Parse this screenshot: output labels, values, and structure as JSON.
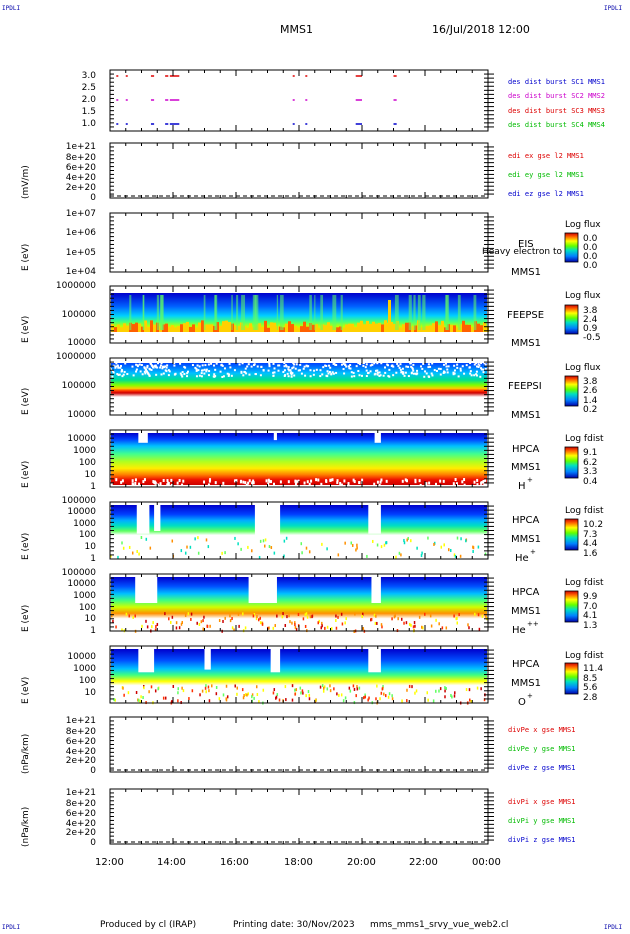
{
  "header": {
    "corner_label": "IPDLI",
    "title": "MMS1",
    "datetime": "16/Jul/2018 12:00"
  },
  "footer": {
    "produced": "Produced by cl (IRAP)",
    "printing": "Printing date: 30/Nov/2023",
    "filename": "mms_mms1_srvy_vue_web2.cl"
  },
  "colors": {
    "mms1": "#0000cc",
    "mms2": "#cc00cc",
    "mms3": "#dd0000",
    "mms4": "#00bb00",
    "x": "#dd0000",
    "y": "#00bb00",
    "z": "#0000cc"
  },
  "x_axis": {
    "ticks": [
      "12:00",
      "14:00",
      "16:00",
      "18:00",
      "20:00",
      "22:00",
      "00:00"
    ]
  },
  "panels": {
    "p1": {
      "ticks": [
        "3.0",
        "2.5",
        "2.0",
        "1.5",
        "1.0"
      ],
      "legend": [
        "des dist burst SC1 MMS1",
        "des dist burst SC2 MMS2",
        "des dist burst SC3 MMS3",
        "des dist burst SC4 MMS4"
      ]
    },
    "p2": {
      "ylabel": "(mV/m)",
      "ticks": [
        "1e+21",
        "8e+20",
        "6e+20",
        "4e+20",
        "2e+20",
        "0"
      ],
      "legend": [
        "edi ex gse l2 MMS1",
        "edi ey gse l2 MMS1",
        "edi ez gse l2 MMS1"
      ]
    },
    "p3": {
      "ylabel": "E (eV)",
      "ticks": [
        "1e+07",
        "1e+06",
        "1e+05",
        "1e+04"
      ],
      "inst": [
        "EIS",
        "MMS1"
      ],
      "overlay": "Heavy electron to",
      "cb_title": "Log flux",
      "cb_vals": [
        "0.0",
        "0.0",
        "0.0",
        "0.0"
      ]
    },
    "p4": {
      "ylabel": "E (eV)",
      "ticks": [
        "1000000",
        "100000",
        "10000"
      ],
      "inst": [
        "FEEPSE",
        "MMS1"
      ],
      "cb_title": "Log flux",
      "cb_vals": [
        "3.8",
        "2.4",
        "0.9",
        "-0.5"
      ]
    },
    "p5": {
      "ylabel": "E (eV)",
      "ticks": [
        "1000000",
        "100000",
        "10000"
      ],
      "inst": [
        "FEEPSI",
        "MMS1"
      ],
      "cb_title": "Log flux",
      "cb_vals": [
        "3.8",
        "2.6",
        "1.4",
        "0.2"
      ]
    },
    "p6": {
      "ylabel": "E (eV)",
      "ticks": [
        "10000",
        "1000",
        "100",
        "10",
        "1"
      ],
      "inst": [
        "HPCA",
        "MMS1",
        "H",
        "+"
      ],
      "cb_title": "Log fdist",
      "cb_vals": [
        "9.1",
        "6.2",
        "3.3",
        "0.4"
      ]
    },
    "p7": {
      "ylabel": "E (eV)",
      "ticks": [
        "100000",
        "10000",
        "1000",
        "100",
        "10",
        "1"
      ],
      "inst": [
        "HPCA",
        "MMS1",
        "He",
        "+"
      ],
      "cb_title": "Log fdist",
      "cb_vals": [
        "10.2",
        "7.3",
        "4.4",
        "1.6"
      ]
    },
    "p8": {
      "ylabel": "E (eV)",
      "ticks": [
        "100000",
        "10000",
        "1000",
        "100",
        "10",
        "1"
      ],
      "inst": [
        "HPCA",
        "MMS1",
        "He",
        "++"
      ],
      "cb_title": "Log fdist",
      "cb_vals": [
        "9.9",
        "7.0",
        "4.1",
        "1.3"
      ]
    },
    "p9": {
      "ylabel": "E (eV)",
      "ticks": [
        "10000",
        "1000",
        "100",
        "10"
      ],
      "inst": [
        "HPCA",
        "MMS1",
        "O",
        "+"
      ],
      "cb_title": "Log fdist",
      "cb_vals": [
        "11.4",
        "8.5",
        "5.6",
        "2.8"
      ]
    },
    "p10": {
      "ylabel": "(nPa/km)",
      "ticks": [
        "1e+21",
        "8e+20",
        "6e+20",
        "4e+20",
        "2e+20",
        "0"
      ],
      "legend": [
        "divPe x gse MMS1",
        "divPe y gse MMS1",
        "divPe z gse MMS1"
      ]
    },
    "p11": {
      "ylabel": "(nPa/km)",
      "ticks": [
        "1e+21",
        "8e+20",
        "6e+20",
        "4e+20",
        "2e+20",
        "0"
      ],
      "legend": [
        "divPi x gse MMS1",
        "divPi y gse MMS1",
        "divPi z gse MMS1"
      ]
    }
  },
  "chart_data": {
    "type": "heatmap",
    "x_range": [
      "12:00",
      "00:00"
    ],
    "burst_segments": {
      "units": "hours since 12:00",
      "MMS1": [
        [
          0.2,
          0.25
        ],
        [
          0.5,
          0.55
        ],
        [
          1.3,
          1.4
        ],
        [
          1.75,
          1.85
        ],
        [
          1.9,
          2.2
        ],
        [
          5.8,
          5.85
        ],
        [
          6.2,
          6.25
        ],
        [
          7.8,
          8.0
        ],
        [
          9.0,
          9.1
        ]
      ],
      "MMS2": [
        [
          0.2,
          0.25
        ],
        [
          0.5,
          0.55
        ],
        [
          1.3,
          1.4
        ],
        [
          1.75,
          1.85
        ],
        [
          1.9,
          2.2
        ],
        [
          5.8,
          5.85
        ],
        [
          6.2,
          6.25
        ],
        [
          7.8,
          8.0
        ],
        [
          9.0,
          9.1
        ]
      ],
      "MMS3": [
        [
          0.2,
          0.25
        ],
        [
          0.5,
          0.55
        ],
        [
          1.3,
          1.4
        ],
        [
          1.75,
          1.85
        ],
        [
          1.9,
          2.2
        ],
        [
          5.8,
          5.85
        ],
        [
          6.2,
          6.25
        ],
        [
          7.8,
          8.0
        ],
        [
          9.0,
          9.1
        ]
      ],
      "MMS4": []
    }
  }
}
